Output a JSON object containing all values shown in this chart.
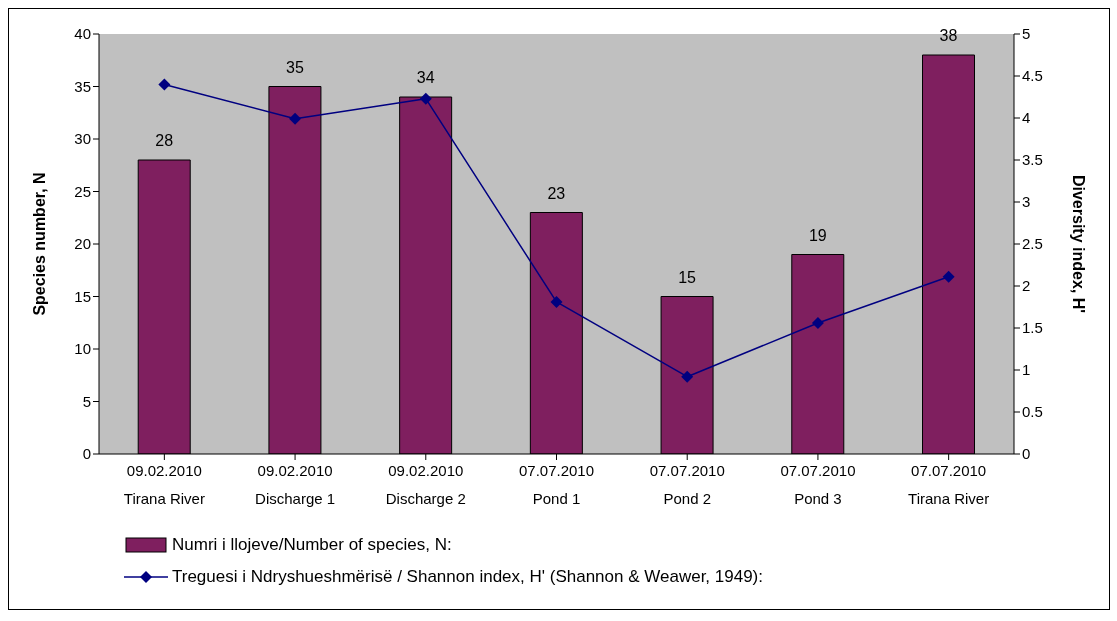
{
  "chart_data": {
    "type": "bar",
    "ylabel": "Species number, N",
    "y2label": "Diversity index, H'",
    "categories": [
      "09.02.2010\nTirana River",
      "09.02.2010\nDischarge 1",
      "09.02.2010\nDischarge 2",
      "07.07.2010\nPond 1",
      "07.07.2010\nPond 2",
      "07.07.2010\nPond 3",
      "07.07.2010\nTirana River"
    ],
    "series": [
      {
        "name": "Numri i llojeve/Number of species, N:",
        "color": "#7f1f5f",
        "values": [
          28,
          35,
          34,
          23,
          15,
          19,
          38
        ],
        "value_labels": [
          "28",
          "35",
          "34",
          "23",
          "15",
          "19",
          "38"
        ]
      },
      {
        "name": "Treguesi i Ndryshueshmërisë / Shannon index, H' (Shannon & Weawer, 1949):",
        "type": "line",
        "axis": "y2",
        "color": "#000080",
        "marker": "diamond",
        "values": [
          4.4,
          3.99,
          4.23,
          1.81,
          0.92,
          1.56,
          2.11
        ]
      }
    ],
    "ylim": [
      0,
      40
    ],
    "yticks": [
      0,
      5,
      10,
      15,
      20,
      25,
      30,
      35,
      40
    ],
    "y2lim": [
      0,
      5
    ],
    "y2ticks": [
      0,
      0.5,
      1,
      1.5,
      2,
      2.5,
      3,
      3.5,
      4,
      4.5,
      5
    ],
    "legend": "bottom"
  }
}
